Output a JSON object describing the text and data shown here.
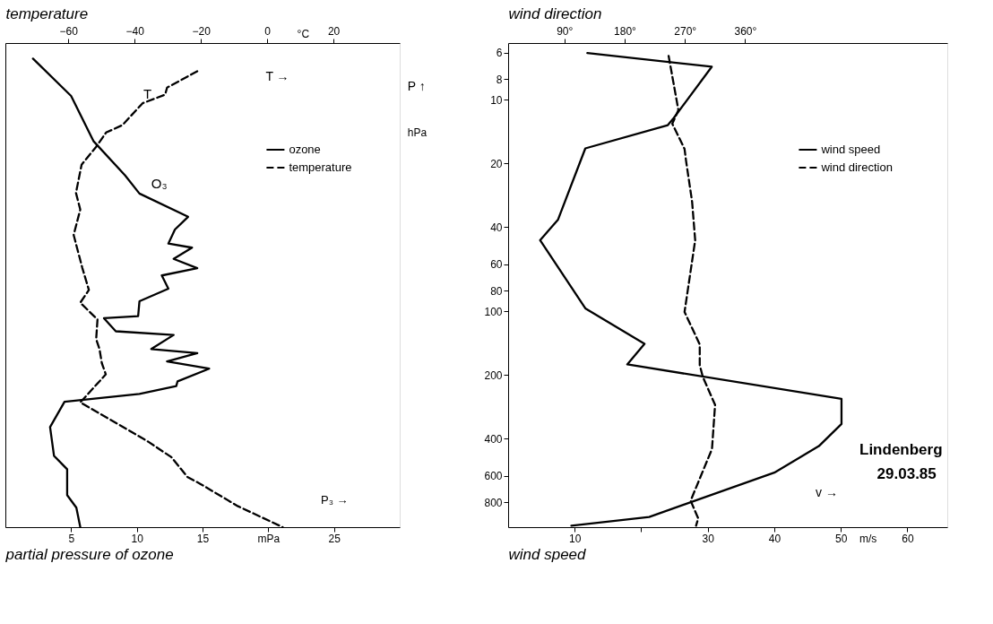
{
  "chart_data": [
    {
      "type": "line",
      "x2label": "temperature",
      "xlabel": "partial pressure of ozone",
      "xlim": [
        0,
        30
      ],
      "xticks": [
        5,
        10,
        15,
        {
          "value": 20,
          "label": "mPa"
        },
        25
      ],
      "x2lim": [
        -79,
        40
      ],
      "x2ticks": [
        -60,
        -40,
        -20,
        0,
        20
      ],
      "ylim": [
        1050,
        5.4
      ],
      "yticks": [
        6,
        8,
        10,
        20,
        40,
        60,
        80,
        100,
        200,
        400,
        600,
        800
      ],
      "log": true,
      "tick_labels": "x",
      "legend": "top right",
      "series": [
        {
          "name": "ozone",
          "color": "#000000",
          "line_style": "solid",
          "x": [
            2.1,
            5.0,
            6.7,
            9.1,
            10.2,
            13.9,
            12.9,
            12.4,
            14.2,
            12.8,
            14.6,
            11.9,
            12.4,
            10.2,
            10.1,
            7.5,
            8.4,
            12.8,
            11.1,
            14.6,
            12.3,
            15.5,
            13.1,
            13.0,
            10.2,
            4.5,
            3.4,
            3.7,
            4.7,
            4.7,
            5.4,
            5.7
          ],
          "values": [
            6.4,
            9.6,
            15.7,
            22.8,
            27.8,
            35.8,
            41.1,
            47.9,
            50.1,
            56.6,
            62.6,
            67.8,
            78.3,
            89.8,
            105.6,
            108,
            124.5,
            129.6,
            151,
            158,
            173,
            187,
            214.6,
            226,
            246,
            268,
            353,
            483,
            559,
            741,
            849,
            1050
          ]
        },
        {
          "name": "temperature",
          "color": "#000000",
          "line_style": "dashed",
          "axis": "x2",
          "x": [
            -21.1,
            -30.2,
            -30.8,
            -37.6,
            -43.7,
            -48.6,
            -51.6,
            -56.0,
            -57.7,
            -56.4,
            -58.4,
            -55.8,
            -53.8,
            -56.4,
            -51.2,
            -51.6,
            -50.6,
            -49.9,
            -48.7,
            -56.4,
            -42.4,
            -35.9,
            -28.9,
            -24.1,
            -20.2,
            -8.8,
            4.7
          ],
          "values": [
            7.34,
            8.77,
            9.47,
            10.4,
            13.2,
            14.3,
            16.7,
            20.3,
            27.6,
            33.1,
            43.6,
            62.3,
            79.4,
            91.2,
            109.5,
            135.6,
            151,
            176,
            199,
            270,
            361,
            414,
            490,
            607,
            655,
            836,
            1050
          ]
        }
      ],
      "annotations": [
        "T →",
        "°C",
        "P₃ →",
        "P ↑",
        "hPa",
        "O₃",
        "T"
      ]
    },
    {
      "type": "line",
      "x2label": "wind direction",
      "xlabel": "wind speed",
      "xlim": [
        0,
        66
      ],
      "xticks": [
        10,
        {
          "value": 20,
          "label": null
        },
        30,
        40,
        50,
        60
      ],
      "x2lim": [
        6,
        662
      ],
      "x2ticks": [
        {
          "value": 90,
          "label": "90°"
        },
        {
          "value": 180,
          "label": "180°"
        },
        {
          "value": 270,
          "label": "270°"
        },
        {
          "value": 360,
          "label": "360°"
        }
      ],
      "ylim": [
        1050,
        5.4
      ],
      "yticks": [
        6,
        8,
        10,
        20,
        40,
        60,
        80,
        100,
        200,
        400,
        600,
        800
      ],
      "log": true,
      "legend": "top right",
      "series": [
        {
          "name": "wind speed",
          "color": "#000000",
          "line_style": "solid",
          "x": [
            11.9,
            30.6,
            24.9,
            24.0,
            11.6,
            7.5,
            4.8,
            11.6,
            20.5,
            17.9,
            50.1,
            50.1,
            46.7,
            40.0,
            21.2,
            9.5
          ],
          "values": [
            6.02,
            6.99,
            12.2,
            13.2,
            17.0,
            36.9,
            46.2,
            97.0,
            142.7,
            178.5,
            260,
            341.6,
            434.5,
            580,
            939,
            1034
          ]
        },
        {
          "name": "wind direction",
          "color": "#000000",
          "line_style": "dashed",
          "axis": "x2",
          "x": [
            245.7,
            260.3,
            251.2,
            269.5,
            271.7,
            280.8,
            285.4,
            269.5,
            292.2,
            292.2,
            296.8,
            315.1,
            310.5,
            278.6,
            289.9,
            286.7
          ],
          "values": [
            6.21,
            11.2,
            13.0,
            17.1,
            19.4,
            30.4,
            46.2,
            100.9,
            143.6,
            179.8,
            204.4,
            277.3,
            448.5,
            787,
            954,
            1033
          ]
        }
      ],
      "annotations": [
        "m/s",
        "v →",
        "Lindenberg",
        "29.03.85"
      ]
    }
  ]
}
